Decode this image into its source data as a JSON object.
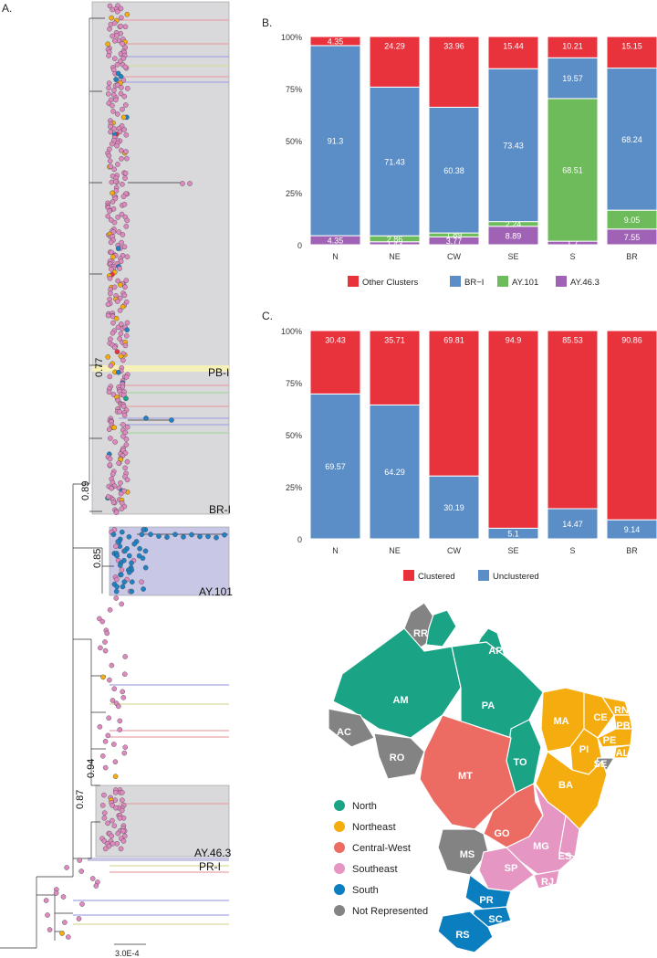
{
  "panels": {
    "a": "A.",
    "b": "B.",
    "c": "C."
  },
  "tree": {
    "scale_bar": "3.0E-4",
    "node_supports": [
      "0.77",
      "0.89",
      "0.85",
      "0.94",
      "0.87"
    ],
    "clades": [
      {
        "name": "PB-I",
        "color": "#f5f0b8"
      },
      {
        "name": "BR-I",
        "color": "#d9d9db"
      },
      {
        "name": "AY.101",
        "color": "#c8c8e6"
      },
      {
        "name": "AY.46.3",
        "color": "#d9d9db"
      },
      {
        "name": "PR-I",
        "color": "#c8c8e6"
      }
    ]
  },
  "colors": {
    "other_clusters": "#e8323c",
    "br_i": "#5b8ec6",
    "ay101": "#6dbb5a",
    "ay463": "#a062b4",
    "north": "#1aa385",
    "northeast": "#f5ac0e",
    "central_west": "#ec6c63",
    "southeast": "#e596c3",
    "south": "#0b7ec0",
    "not_represented": "#838383"
  },
  "chart_data": [
    {
      "type": "bar",
      "stacked": true,
      "panel": "B.",
      "categories": [
        "N",
        "NE",
        "CW",
        "SE",
        "S",
        "BR"
      ],
      "yticks": [
        "0",
        "25%",
        "50%",
        "75%",
        "100%"
      ],
      "ylim": [
        0,
        100
      ],
      "series": [
        {
          "name": "AY.46.3",
          "values": [
            4.35,
            1.43,
            3.77,
            8.89,
            1.7,
            7.55
          ]
        },
        {
          "name": "AY.101",
          "values": [
            0,
            2.86,
            1.89,
            2.24,
            68.51,
            9.05
          ]
        },
        {
          "name": "BR−I",
          "values": [
            91.3,
            71.43,
            60.38,
            73.43,
            19.57,
            68.24
          ]
        },
        {
          "name": "Other Clusters",
          "values": [
            4.35,
            24.29,
            33.96,
            15.44,
            10.21,
            15.15
          ]
        }
      ],
      "labels": [
        {
          "name": "AY.46.3",
          "values": [
            "4.35",
            "1.43",
            "3.77",
            "8.89",
            "1.7",
            "7.55"
          ]
        },
        {
          "name": "AY.101",
          "values": [
            "",
            "2.86",
            "1.89",
            "2.24",
            "68.51",
            "9.05"
          ]
        },
        {
          "name": "BR−I",
          "values": [
            "91.3",
            "71.43",
            "60.38",
            "73.43",
            "19.57",
            "68.24"
          ]
        },
        {
          "name": "Other Clusters",
          "values": [
            "4.35",
            "24.29",
            "33.96",
            "15.44",
            "10.21",
            "15.15"
          ]
        }
      ],
      "legend": [
        "Other Clusters",
        "BR−I",
        "AY.101",
        "AY.46.3"
      ]
    },
    {
      "type": "bar",
      "stacked": true,
      "panel": "C.",
      "categories": [
        "N",
        "NE",
        "CW",
        "SE",
        "S",
        "BR"
      ],
      "yticks": [
        "0",
        "25%",
        "50%",
        "75%",
        "100%"
      ],
      "ylim": [
        0,
        100
      ],
      "series": [
        {
          "name": "Unclustered",
          "values": [
            69.57,
            64.29,
            30.19,
            5.1,
            14.47,
            9.14
          ]
        },
        {
          "name": "Clustered",
          "values": [
            30.43,
            35.71,
            69.81,
            94.9,
            85.53,
            90.86
          ]
        }
      ],
      "labels": [
        {
          "name": "Unclustered",
          "values": [
            "69.57",
            "64.29",
            "30.19",
            "5.1",
            "14.47",
            "9.14"
          ]
        },
        {
          "name": "Clustered",
          "values": [
            "30.43",
            "35.71",
            "69.81",
            "94.9",
            "85.53",
            "90.86"
          ]
        }
      ],
      "legend": [
        "Clustered",
        "Unclustered"
      ]
    }
  ],
  "map": {
    "states": {
      "RR": "RR",
      "AP": "AP",
      "AM": "AM",
      "PA": "PA",
      "AC": "AC",
      "RO": "RO",
      "TO": "TO",
      "MA": "MA",
      "CE": "CE",
      "RN": "RN",
      "PB": "PB",
      "PE": "PE",
      "PI": "PI",
      "AL": "AL",
      "SE": "SE",
      "BA": "BA",
      "MT": "MT",
      "GO": "GO",
      "MS": "MS",
      "MG": "MG",
      "ES": "ES",
      "SP": "SP",
      "RJ": "RJ",
      "PR": "PR",
      "SC": "SC",
      "RS": "RS"
    },
    "legend": [
      "North",
      "Northeast",
      "Central-West",
      "Southeast",
      "South",
      "Not Represented"
    ]
  }
}
